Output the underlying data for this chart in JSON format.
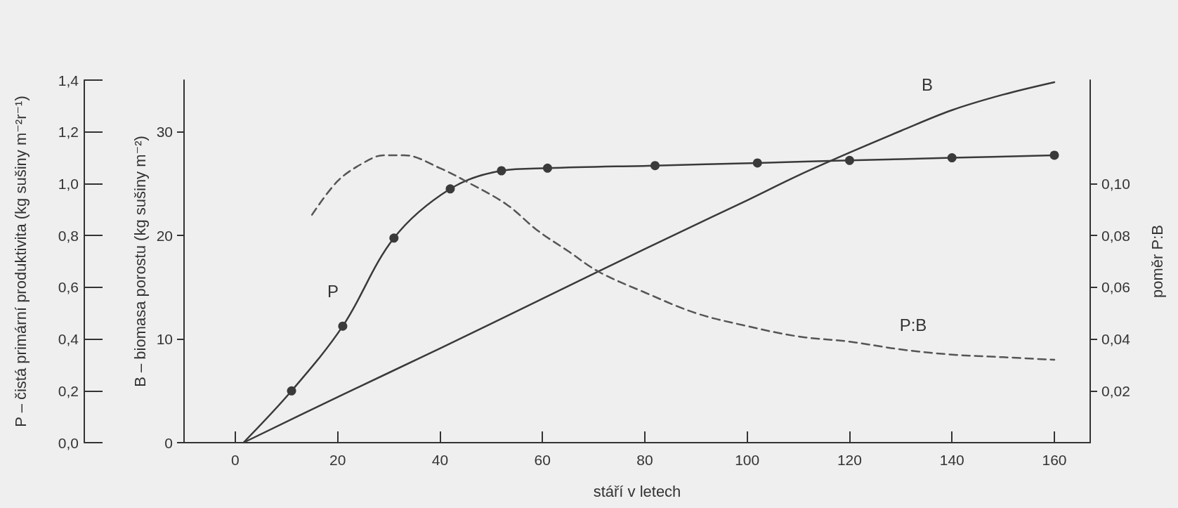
{
  "chart_data": {
    "type": "line",
    "xlabel": "stáří v letech",
    "ylabel": "P – čistá primární produktivita (kg sušiny m⁻²r⁻¹)",
    "y2label": "B – biomasa porostu (kg sušiny m⁻²)",
    "y3label": "poměr P:B",
    "xlim": [
      -10,
      167
    ],
    "xticks": [
      0,
      20,
      40,
      60,
      80,
      100,
      120,
      140,
      160
    ],
    "ylim": [
      0,
      1.4
    ],
    "yticks": [
      {
        "value": 0,
        "label": "0,0"
      },
      {
        "value": 0.2,
        "label": "0,2"
      },
      {
        "value": 0.4,
        "label": "0,4"
      },
      {
        "value": 0.6,
        "label": "0,6"
      },
      {
        "value": 0.8,
        "label": "0,8"
      },
      {
        "value": 1.0,
        "label": "1,0"
      },
      {
        "value": 1.2,
        "label": "1,2"
      },
      {
        "value": 1.4,
        "label": "1,4"
      }
    ],
    "y2lim": [
      0,
      35
    ],
    "y2ticks": [
      0,
      10,
      20,
      30
    ],
    "y3lim": [
      0,
      0.14
    ],
    "y3ticks": [
      {
        "value": 0.02,
        "label": "0,02"
      },
      {
        "value": 0.04,
        "label": "0,04"
      },
      {
        "value": 0.06,
        "label": "0,06"
      },
      {
        "value": 0.08,
        "label": "0,08"
      },
      {
        "value": 0.1,
        "label": "0,10"
      }
    ],
    "grid": false,
    "series": [
      {
        "color": "#3a3a3a",
        "marker": "circle",
        "line_style": "solid",
        "x": [
          1.6,
          11,
          21,
          31,
          42,
          52,
          61,
          82,
          102,
          120,
          140,
          160
        ],
        "values": [
          0,
          0.2,
          0.45,
          0.79,
          0.98,
          1.05,
          1.06,
          1.07,
          1.08,
          1.09,
          1.1,
          1.11
        ]
      },
      {
        "color": "#3a3a3a",
        "marker": "none",
        "line_style": "solid",
        "axis": "y2",
        "x": [
          1.6,
          20,
          40,
          60,
          80,
          100,
          110,
          120,
          130,
          140,
          150,
          160
        ],
        "values": [
          0,
          4.4,
          9.1,
          13.9,
          18.7,
          23.4,
          25.8,
          28.0,
          30.1,
          32.1,
          33.6,
          34.8
        ]
      },
      {
        "color": "#555555",
        "marker": "none",
        "line_style": "dashed",
        "axis": "y3",
        "x": [
          15,
          20,
          25,
          29,
          33,
          40,
          45,
          53,
          59,
          65,
          71,
          80,
          90,
          100,
          110,
          120,
          130,
          140,
          150,
          160
        ],
        "values": [
          0.088,
          0.101,
          0.108,
          0.111,
          0.111,
          0.106,
          0.101,
          0.092,
          0.082,
          0.074,
          0.066,
          0.058,
          0.05,
          0.045,
          0.041,
          0.039,
          0.036,
          0.034,
          0.033,
          0.032
        ]
      }
    ],
    "annotations": [
      "P",
      "B",
      "P:B"
    ]
  }
}
